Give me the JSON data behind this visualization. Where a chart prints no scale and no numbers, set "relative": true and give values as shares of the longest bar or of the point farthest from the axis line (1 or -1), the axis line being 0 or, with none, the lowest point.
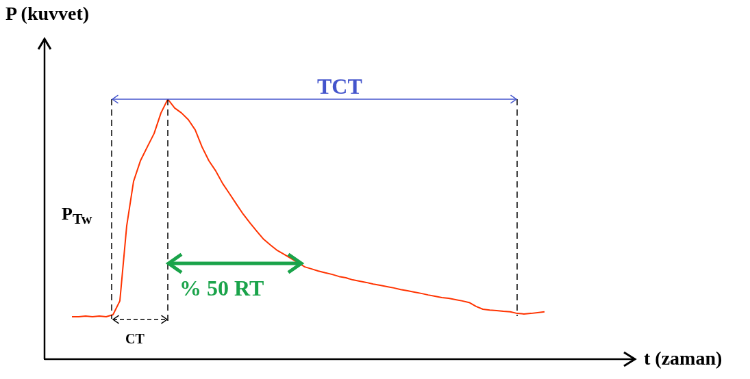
{
  "chart_data": {
    "type": "line",
    "relative": true,
    "xlabel": "t (zaman)",
    "ylabel": "P (kuvvet)",
    "categories": [
      null,
      null,
      null,
      null,
      null,
      null,
      null,
      null,
      null,
      null,
      null,
      null,
      null,
      null,
      null,
      null,
      null,
      null,
      null,
      null,
      null,
      null,
      null,
      null,
      null,
      null,
      null,
      null,
      null,
      null,
      null,
      null,
      null,
      null,
      null,
      null,
      null,
      null,
      null,
      null,
      null,
      null,
      null,
      null,
      null,
      null,
      null,
      null,
      null,
      null,
      null,
      null,
      null,
      null,
      null,
      null,
      null,
      null,
      null,
      null,
      null,
      null,
      null,
      null,
      null,
      null,
      null,
      null,
      null,
      null,
      null,
      null,
      null,
      null,
      null,
      null,
      null,
      null,
      null,
      null,
      null,
      null,
      null,
      null,
      null,
      null
    ],
    "series": [
      {
        "color": "#ff3300",
        "values": [
          null,
          null,
          null,
          null,
          0.163,
          0.163,
          0.166,
          0.163,
          0.166,
          0.163,
          0.171,
          0.224,
          0.513,
          0.684,
          0.763,
          0.816,
          0.868,
          0.947,
          1,
          0.966,
          0.947,
          0.921,
          0.882,
          0.816,
          0.763,
          0.724,
          0.676,
          0.637,
          0.597,
          0.558,
          0.524,
          0.492,
          0.461,
          0.439,
          0.418,
          0.403,
          0.387,
          0.371,
          0.355,
          0.347,
          0.339,
          0.332,
          0.326,
          0.318,
          0.313,
          0.305,
          0.3,
          0.295,
          0.289,
          0.284,
          0.279,
          0.274,
          0.268,
          0.263,
          0.258,
          0.253,
          0.247,
          0.242,
          0.237,
          0.234,
          0.229,
          0.224,
          0.218,
          0.203,
          0.192,
          0.189,
          0.187,
          0.184,
          0.182,
          0.176,
          0.174,
          0.176,
          0.179,
          0.182,
          null,
          null,
          null,
          null,
          null,
          null,
          null,
          null,
          null,
          null,
          null,
          null
        ]
      }
    ],
    "annotations": [
      "TCT",
      "% 50 RT",
      "CT",
      "P$_{Tw}$"
    ],
    "grid": false,
    "legend": false,
    "marker": "none",
    "line_style": "solid"
  }
}
